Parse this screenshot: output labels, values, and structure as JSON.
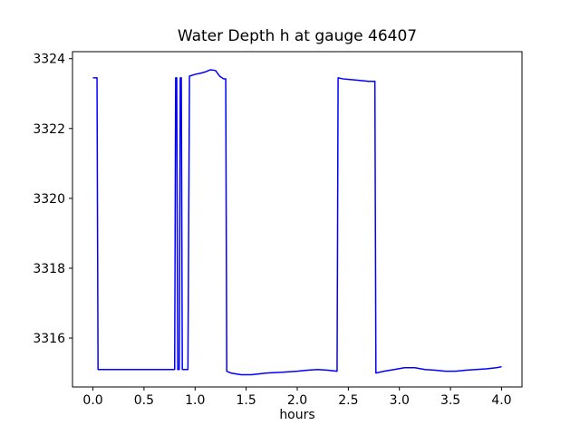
{
  "chart_data": {
    "type": "line",
    "title": "Water Depth h at gauge 46407",
    "xlabel": "hours",
    "ylabel": "",
    "grid": false,
    "legend": "none",
    "line_color": "#0000ff",
    "xlim": [
      -0.2,
      4.2
    ],
    "ylim": [
      3314.6,
      3324.2
    ],
    "xticks": [
      0.0,
      0.5,
      1.0,
      1.5,
      2.0,
      2.5,
      3.0,
      3.5,
      4.0
    ],
    "xtick_labels": [
      "0.0",
      "0.5",
      "1.0",
      "1.5",
      "2.0",
      "2.5",
      "3.0",
      "3.5",
      "4.0"
    ],
    "yticks": [
      3316,
      3318,
      3320,
      3322,
      3324
    ],
    "ytick_labels": [
      "3316",
      "3318",
      "3320",
      "3322",
      "3324"
    ],
    "series": [
      {
        "name": "water-depth-h",
        "x": [
          0.0,
          0.04,
          0.05,
          0.8,
          0.81,
          0.82,
          0.83,
          0.845,
          0.855,
          0.865,
          0.875,
          0.93,
          0.945,
          1.0,
          1.05,
          1.1,
          1.15,
          1.2,
          1.24,
          1.28,
          1.3,
          1.31,
          1.35,
          1.45,
          1.55,
          1.7,
          1.85,
          2.0,
          2.1,
          2.2,
          2.3,
          2.39,
          2.4,
          2.45,
          2.6,
          2.7,
          2.76,
          2.77,
          2.85,
          2.95,
          3.05,
          3.15,
          3.25,
          3.35,
          3.45,
          3.55,
          3.65,
          3.75,
          3.85,
          3.95,
          4.0
        ],
        "y": [
          3323.45,
          3323.45,
          3315.1,
          3315.1,
          3323.45,
          3323.45,
          3315.1,
          3315.1,
          3323.45,
          3323.45,
          3315.1,
          3315.1,
          3323.5,
          3323.55,
          3323.58,
          3323.62,
          3323.68,
          3323.66,
          3323.5,
          3323.42,
          3323.42,
          3315.05,
          3315.0,
          3314.95,
          3314.95,
          3315.0,
          3315.02,
          3315.05,
          3315.08,
          3315.1,
          3315.08,
          3315.05,
          3323.45,
          3323.42,
          3323.38,
          3323.35,
          3323.35,
          3315.0,
          3315.05,
          3315.1,
          3315.15,
          3315.15,
          3315.1,
          3315.08,
          3315.05,
          3315.05,
          3315.08,
          3315.1,
          3315.12,
          3315.15,
          3315.18
        ]
      }
    ]
  }
}
